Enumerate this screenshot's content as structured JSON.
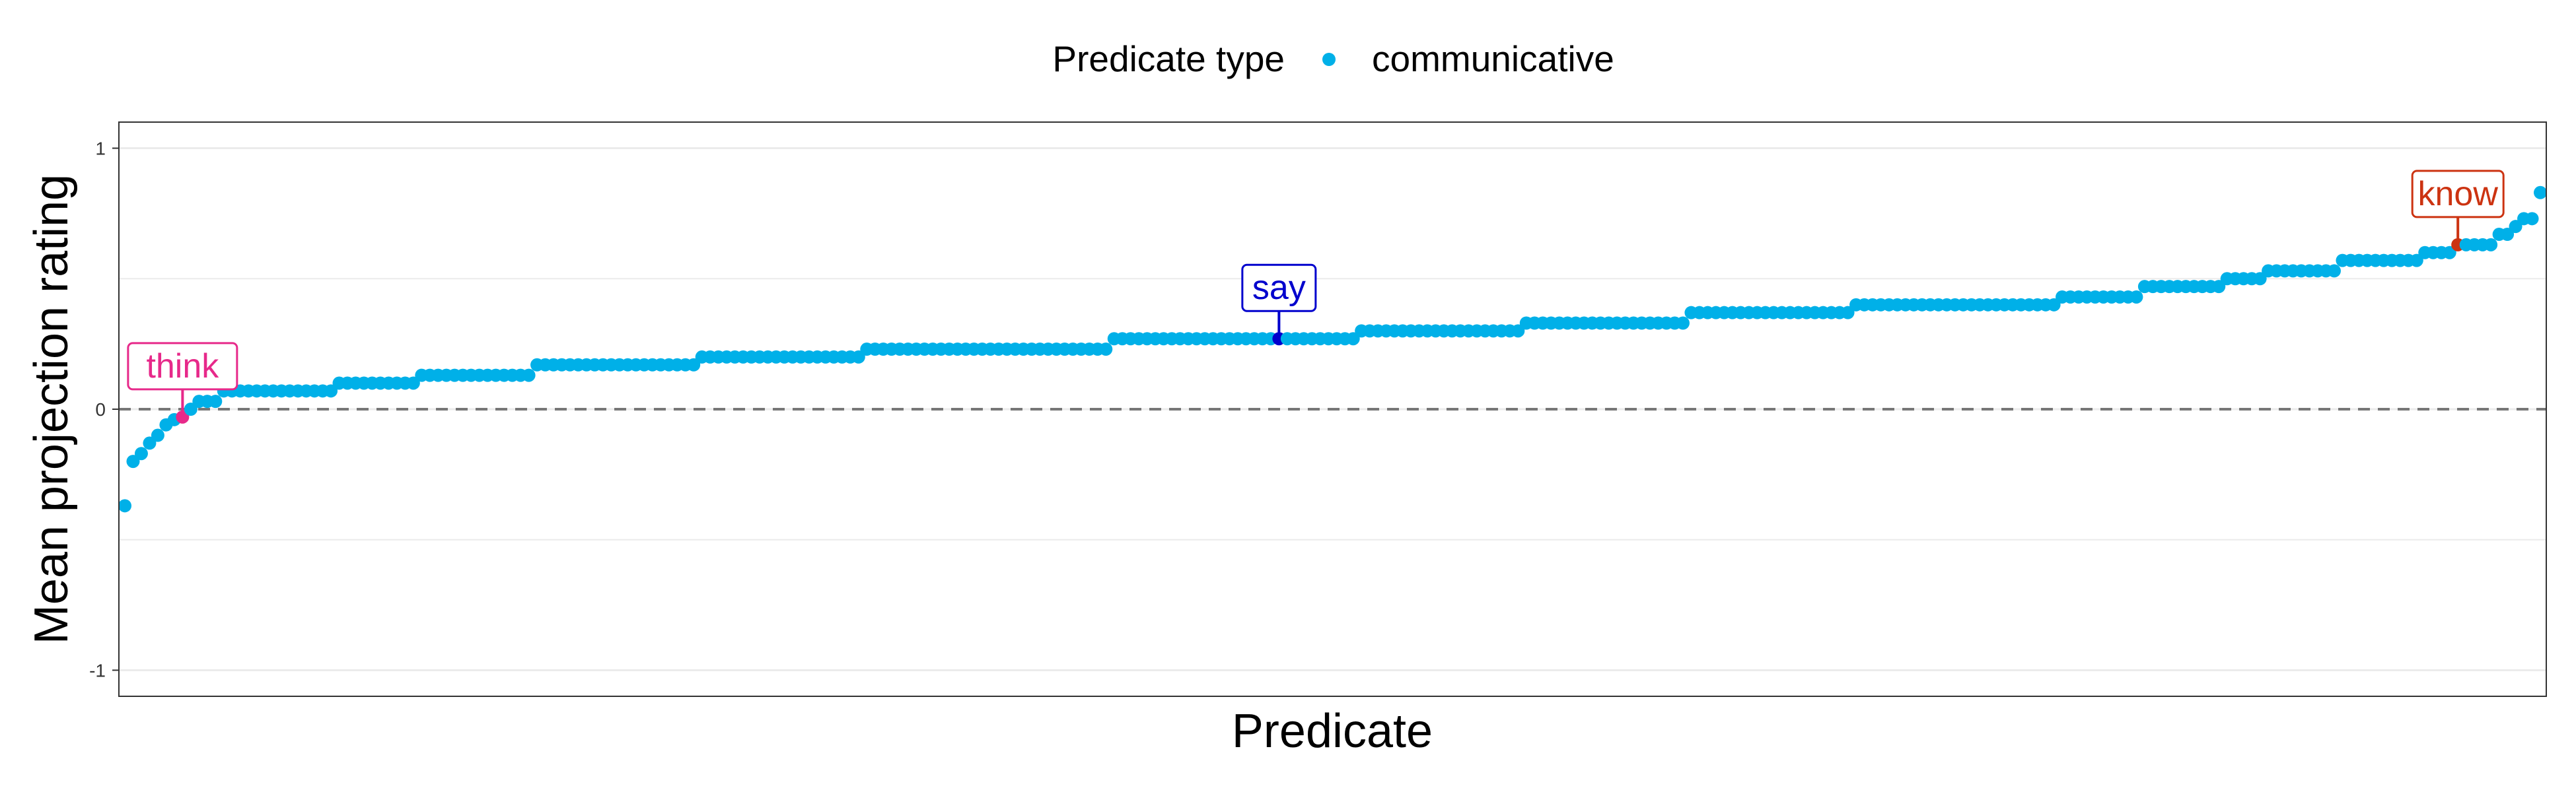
{
  "chart_data": {
    "type": "scatter",
    "title": "",
    "xlabel": "Predicate",
    "ylabel": "Mean projection rating",
    "ylim": [
      -1.1,
      1.1
    ],
    "yticks": [
      -1,
      0,
      1
    ],
    "ytick_labels": [
      "-1",
      "0",
      "1"
    ],
    "grid": true,
    "reference_line": {
      "y": 0,
      "style": "dashed"
    },
    "legend": {
      "position": "top",
      "title": "Predicate type",
      "items": [
        {
          "label": "communicative",
          "color": "#00B0E8"
        }
      ]
    },
    "point_color": "#00B0E8",
    "series": [
      {
        "values": [
          -0.37,
          -0.2,
          -0.17,
          -0.13,
          -0.1,
          -0.06,
          -0.04,
          -0.03,
          0.0,
          0.03,
          0.03,
          0.03,
          0.07,
          0.07,
          0.07,
          0.07,
          0.07,
          0.07,
          0.07,
          0.07,
          0.07,
          0.07,
          0.07,
          0.07,
          0.07,
          0.07,
          0.1,
          0.1,
          0.1,
          0.1,
          0.1,
          0.1,
          0.1,
          0.1,
          0.1,
          0.1,
          0.13,
          0.13,
          0.13,
          0.13,
          0.13,
          0.13,
          0.13,
          0.13,
          0.13,
          0.13,
          0.13,
          0.13,
          0.13,
          0.13,
          0.17,
          0.17,
          0.17,
          0.17,
          0.17,
          0.17,
          0.17,
          0.17,
          0.17,
          0.17,
          0.17,
          0.17,
          0.17,
          0.17,
          0.17,
          0.17,
          0.17,
          0.17,
          0.17,
          0.17,
          0.2,
          0.2,
          0.2,
          0.2,
          0.2,
          0.2,
          0.2,
          0.2,
          0.2,
          0.2,
          0.2,
          0.2,
          0.2,
          0.2,
          0.2,
          0.2,
          0.2,
          0.2,
          0.2,
          0.2,
          0.23,
          0.23,
          0.23,
          0.23,
          0.23,
          0.23,
          0.23,
          0.23,
          0.23,
          0.23,
          0.23,
          0.23,
          0.23,
          0.23,
          0.23,
          0.23,
          0.23,
          0.23,
          0.23,
          0.23,
          0.23,
          0.23,
          0.23,
          0.23,
          0.23,
          0.23,
          0.23,
          0.23,
          0.23,
          0.23,
          0.27,
          0.27,
          0.27,
          0.27,
          0.27,
          0.27,
          0.27,
          0.27,
          0.27,
          0.27,
          0.27,
          0.27,
          0.27,
          0.27,
          0.27,
          0.27,
          0.27,
          0.27,
          0.27,
          0.27,
          0.27,
          0.27,
          0.27,
          0.27,
          0.27,
          0.27,
          0.27,
          0.27,
          0.27,
          0.27,
          0.3,
          0.3,
          0.3,
          0.3,
          0.3,
          0.3,
          0.3,
          0.3,
          0.3,
          0.3,
          0.3,
          0.3,
          0.3,
          0.3,
          0.3,
          0.3,
          0.3,
          0.3,
          0.3,
          0.3,
          0.33,
          0.33,
          0.33,
          0.33,
          0.33,
          0.33,
          0.33,
          0.33,
          0.33,
          0.33,
          0.33,
          0.33,
          0.33,
          0.33,
          0.33,
          0.33,
          0.33,
          0.33,
          0.33,
          0.33,
          0.37,
          0.37,
          0.37,
          0.37,
          0.37,
          0.37,
          0.37,
          0.37,
          0.37,
          0.37,
          0.37,
          0.37,
          0.37,
          0.37,
          0.37,
          0.37,
          0.37,
          0.37,
          0.37,
          0.37,
          0.4,
          0.4,
          0.4,
          0.4,
          0.4,
          0.4,
          0.4,
          0.4,
          0.4,
          0.4,
          0.4,
          0.4,
          0.4,
          0.4,
          0.4,
          0.4,
          0.4,
          0.4,
          0.4,
          0.4,
          0.4,
          0.4,
          0.4,
          0.4,
          0.4,
          0.43,
          0.43,
          0.43,
          0.43,
          0.43,
          0.43,
          0.43,
          0.43,
          0.43,
          0.43,
          0.47,
          0.47,
          0.47,
          0.47,
          0.47,
          0.47,
          0.47,
          0.47,
          0.47,
          0.47,
          0.5,
          0.5,
          0.5,
          0.5,
          0.5,
          0.53,
          0.53,
          0.53,
          0.53,
          0.53,
          0.53,
          0.53,
          0.53,
          0.53,
          0.57,
          0.57,
          0.57,
          0.57,
          0.57,
          0.57,
          0.57,
          0.57,
          0.57,
          0.57,
          0.6,
          0.6,
          0.6,
          0.6,
          0.63,
          0.63,
          0.63,
          0.63,
          0.63,
          0.67,
          0.67,
          0.7,
          0.73,
          0.73,
          0.83
        ]
      }
    ],
    "highlighted": [
      {
        "label": "think",
        "index": 7,
        "color": "#E7298A"
      },
      {
        "label": "say",
        "index": 140,
        "color": "#0000CD"
      },
      {
        "label": "know",
        "index": 283,
        "color": "#CC3311"
      }
    ]
  }
}
